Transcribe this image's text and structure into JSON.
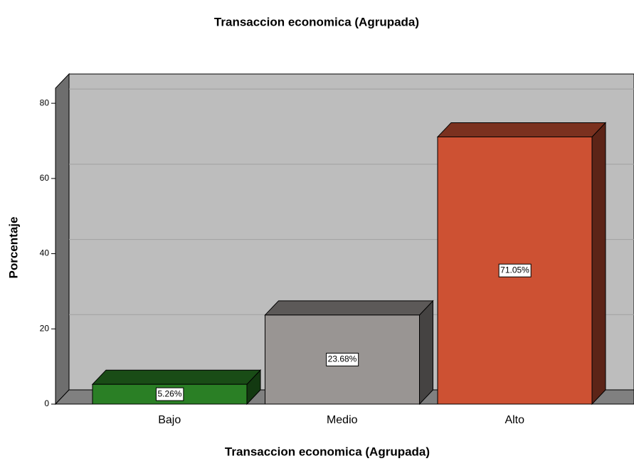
{
  "chart_data": {
    "type": "bar3d",
    "title": "Transaccion  economica (Agrupada)",
    "xlabel": "Transaccion  economica (Agrupada)",
    "ylabel": "Porcentaje",
    "categories": [
      "Bajo",
      "Medio",
      "Alto"
    ],
    "values": [
      5.26,
      23.68,
      71.05
    ],
    "value_labels": [
      "5.26%",
      "23.68%",
      "71.05%"
    ],
    "colors": [
      "#2a7f25",
      "#999593",
      "#cd5133"
    ],
    "ylim": [
      0,
      84
    ],
    "yticks": [
      0,
      20,
      40,
      60,
      80
    ],
    "grid": true
  }
}
